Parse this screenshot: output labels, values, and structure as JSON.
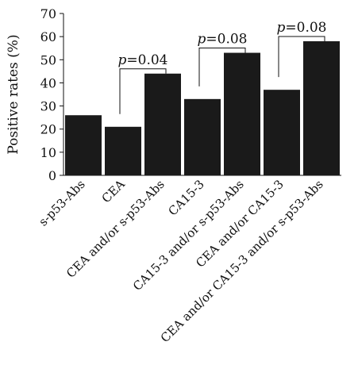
{
  "chart_data": {
    "type": "bar",
    "ylabel": "Positive rates (%)",
    "ylim": [
      0,
      70
    ],
    "yticks": [
      "0",
      "10",
      "20",
      "30",
      "40",
      "50",
      "60",
      "70"
    ],
    "categories": [
      "s-p53-Abs",
      "CEA",
      "CEA and/or s-p53-Abs",
      "CA15-3",
      "CA15-3 and/or s-p53-Abs",
      "CEA and/or CA15-3",
      "CEA and/or CA15-3 and/or s-p53-Abs"
    ],
    "values": [
      26,
      21,
      44,
      33,
      53,
      37,
      58
    ],
    "bar_color": "#1a1a1a",
    "grid": false,
    "annotations": [
      {
        "p_label": "p",
        "value_label": "=0.04",
        "from": 1,
        "to": 2
      },
      {
        "p_label": "p",
        "value_label": "=0.08",
        "from": 3,
        "to": 4
      },
      {
        "p_label": "p",
        "value_label": "=0.08",
        "from": 5,
        "to": 6
      }
    ]
  }
}
